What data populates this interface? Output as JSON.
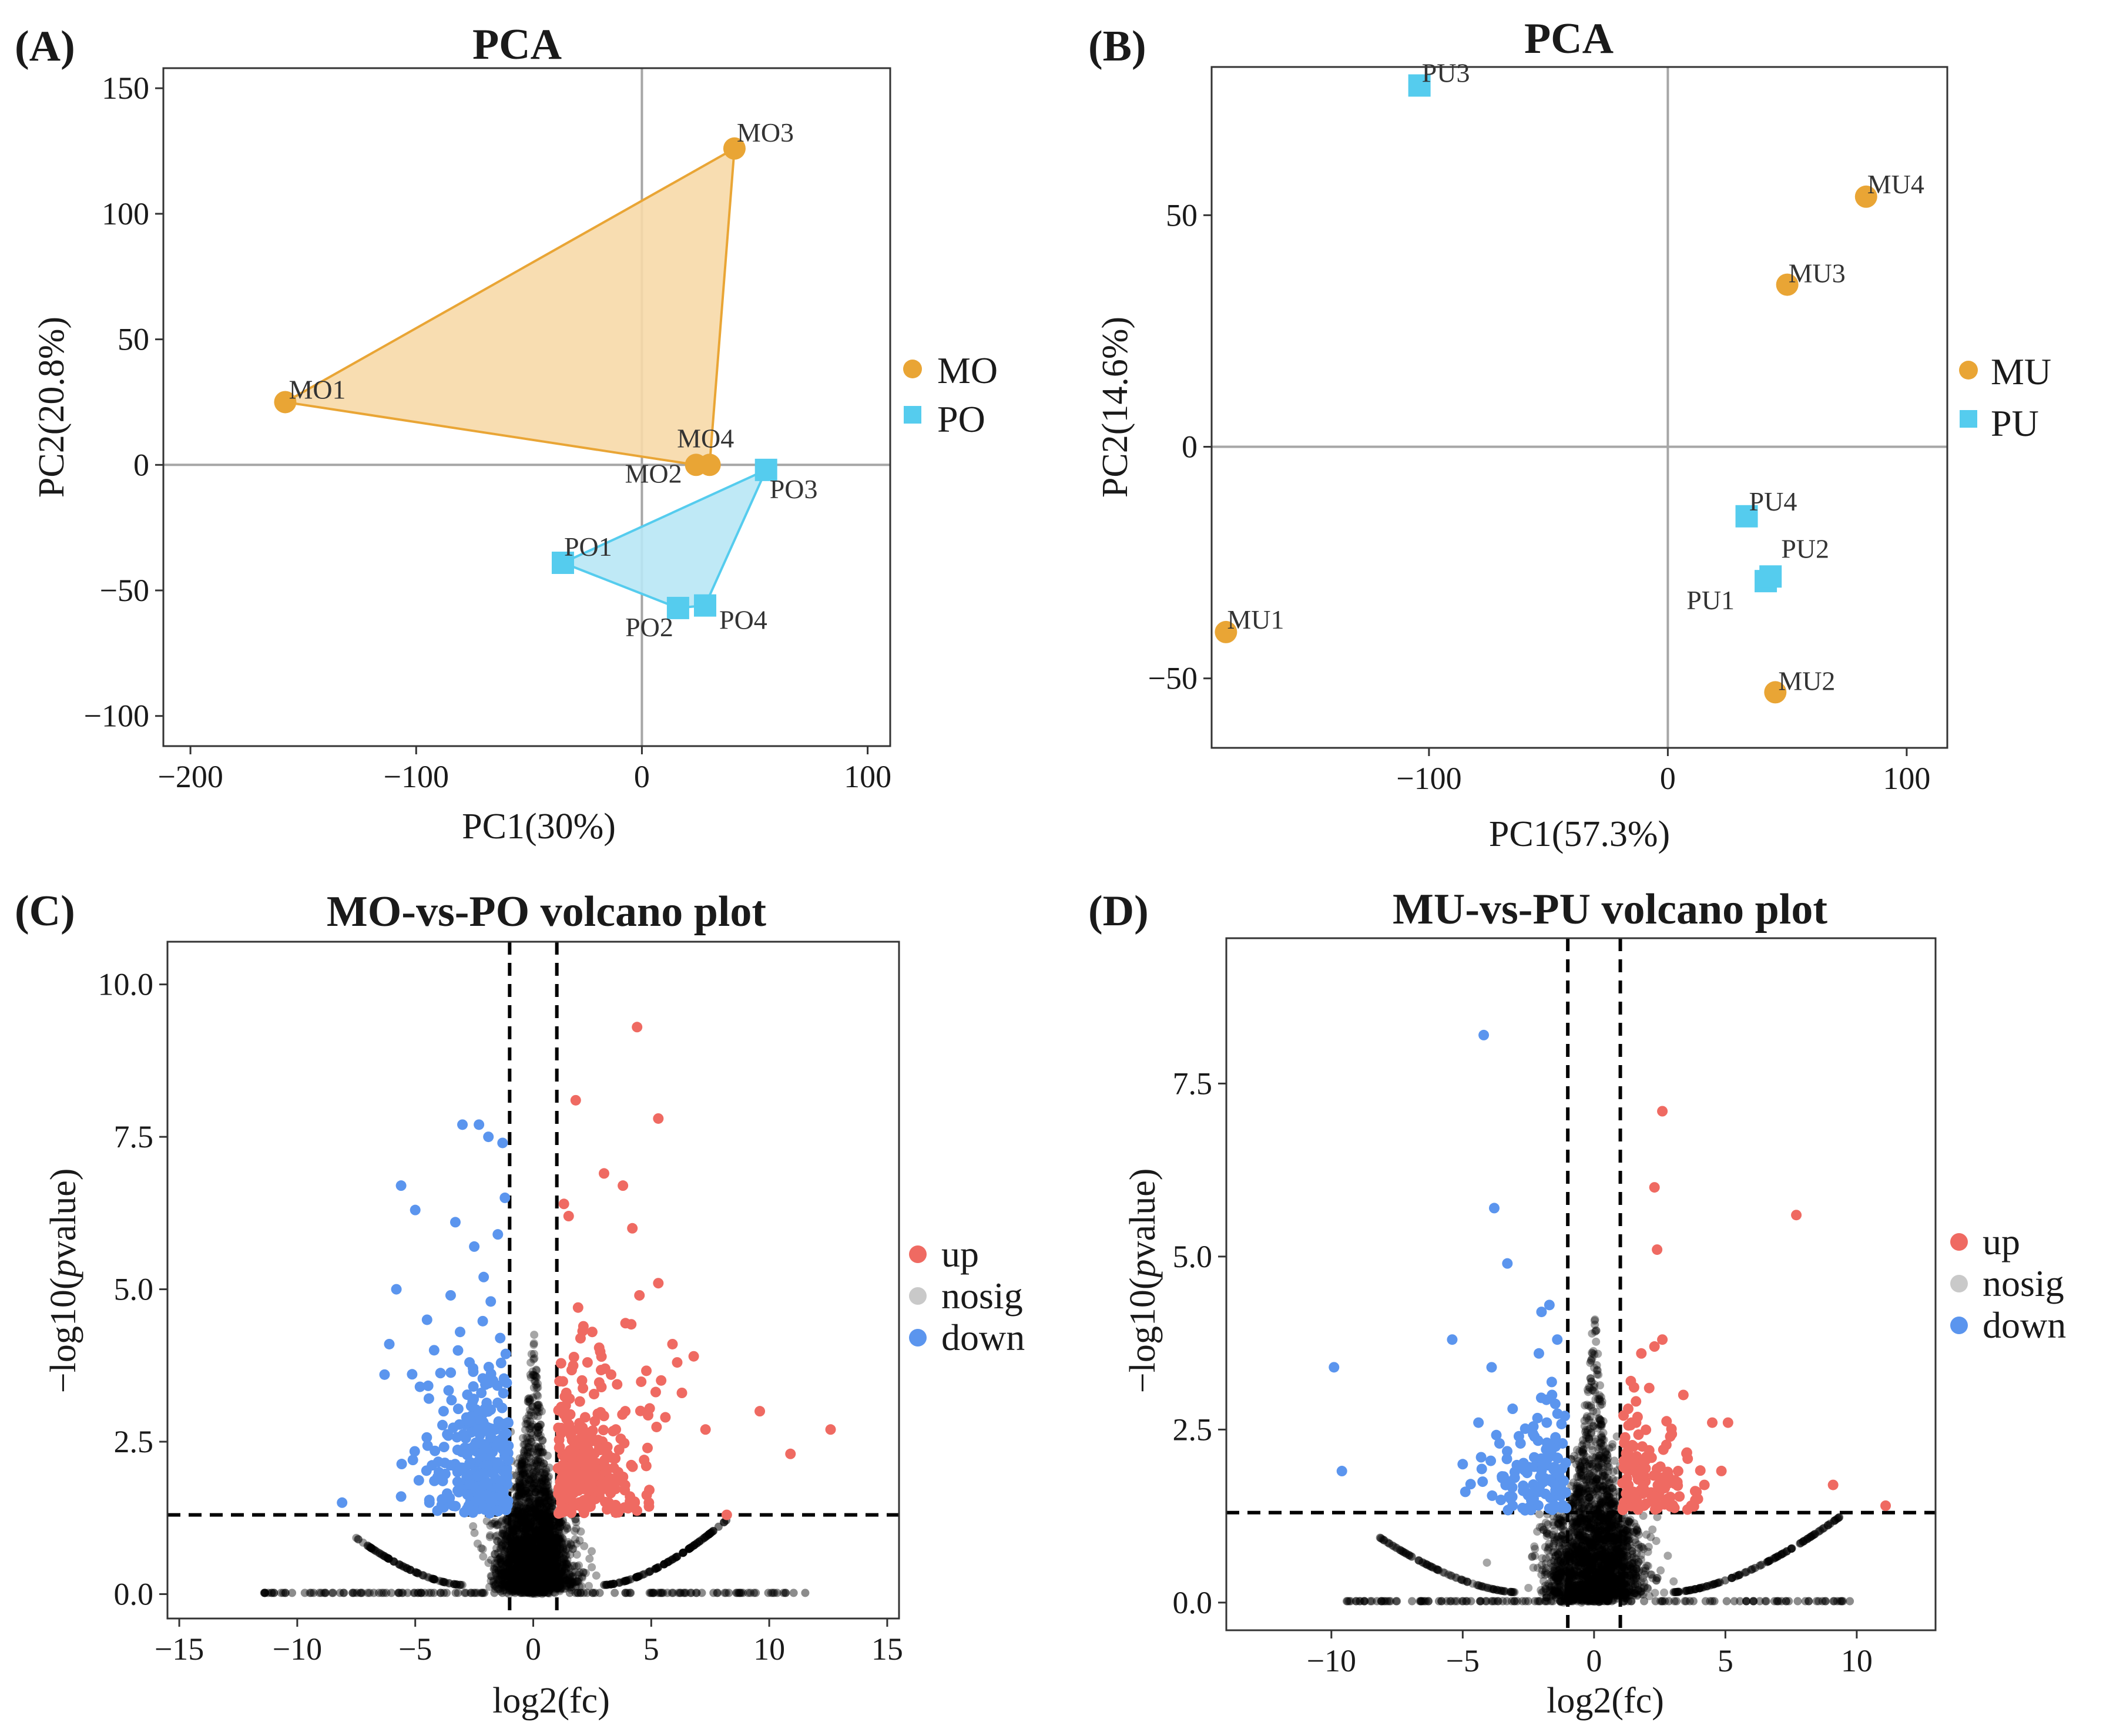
{
  "colors": {
    "orange": "#e9a535",
    "blue": "#55ccee",
    "orange_fill": "#f7d9a9",
    "blue_fill": "#b8e7f5",
    "up": "#ef6a62",
    "down": "#5b95ee",
    "nosig": "#000000",
    "nosig_legend": "#c9c9c9"
  },
  "panels": [
    {
      "letter": "(A)",
      "title": "PCA",
      "xlabel": "PC1(30%)",
      "ylabel": "PC2(20.8%)",
      "xticks": [
        "−200",
        "−100",
        "0",
        "100"
      ],
      "yticks": [
        "−100",
        "−50",
        "0",
        "50",
        "100",
        "150"
      ],
      "legend": [
        "MO",
        "PO"
      ]
    },
    {
      "letter": "(B)",
      "title": "PCA",
      "xlabel": "PC1(57.3%)",
      "ylabel": "PC2(14.6%)",
      "xticks": [
        "−100",
        "0",
        "100"
      ],
      "yticks": [
        "−50",
        "0",
        "50"
      ],
      "legend": [
        "MU",
        "PU"
      ]
    },
    {
      "letter": "(C)",
      "title": "MO-vs-PO volcano plot",
      "xlabel": "log2(fc)",
      "ylabel": "−log10(",
      "ylabel_italic": "p",
      "ylabel_end": "value)",
      "xticks": [
        "−15",
        "−10",
        "−5",
        "0",
        "5",
        "10",
        "15"
      ],
      "yticks": [
        "0.0",
        "2.5",
        "5.0",
        "7.5",
        "10.0"
      ],
      "legend": [
        "up",
        "nosig",
        "down"
      ]
    },
    {
      "letter": "(D)",
      "title": "MU-vs-PU volcano plot",
      "xlabel": "log2(fc)",
      "ylabel": "−log10(",
      "ylabel_italic": "p",
      "ylabel_end": "value)",
      "xticks": [
        "−10",
        "−5",
        "0",
        "5",
        "10"
      ],
      "yticks": [
        "0.0",
        "2.5",
        "5.0",
        "7.5"
      ],
      "legend": [
        "up",
        "nosig",
        "down"
      ]
    }
  ],
  "chart_data": [
    {
      "type": "scatter",
      "title": "PCA",
      "xlabel": "PC1(30%)",
      "ylabel": "PC2(20.8%)",
      "xlim": [
        -212,
        110
      ],
      "ylim": [
        -112,
        158
      ],
      "reference_lines": {
        "x": 0,
        "y": 0
      },
      "legend_position": "right",
      "series": [
        {
          "name": "MO",
          "marker": "circle",
          "color": "#e9a535",
          "hull": [
            "MO1",
            "MO3",
            "MO4",
            "MO2"
          ],
          "points": [
            {
              "label": "MO1",
              "x": -158,
              "y": 25
            },
            {
              "label": "MO2",
              "x": 24,
              "y": 0
            },
            {
              "label": "MO3",
              "x": 41,
              "y": 126
            },
            {
              "label": "MO4",
              "x": 30,
              "y": 0
            }
          ]
        },
        {
          "name": "PO",
          "marker": "square",
          "color": "#55ccee",
          "hull": [
            "PO1",
            "PO3",
            "PO4",
            "PO2"
          ],
          "points": [
            {
              "label": "PO1",
              "x": -35,
              "y": -39
            },
            {
              "label": "PO2",
              "x": 16,
              "y": -57
            },
            {
              "label": "PO3",
              "x": 55,
              "y": -2
            },
            {
              "label": "PO4",
              "x": 28,
              "y": -56
            }
          ]
        }
      ]
    },
    {
      "type": "scatter",
      "title": "PCA",
      "xlabel": "PC1(57.3%)",
      "ylabel": "PC2(14.6%)",
      "xlim": [
        -191,
        117
      ],
      "ylim": [
        -65,
        82
      ],
      "reference_lines": {
        "x": 0,
        "y": 0
      },
      "legend_position": "right",
      "series": [
        {
          "name": "MU",
          "marker": "circle",
          "color": "#e9a535",
          "points": [
            {
              "label": "MU1",
              "x": -185,
              "y": -40
            },
            {
              "label": "MU2",
              "x": 45,
              "y": -53
            },
            {
              "label": "MU3",
              "x": 50,
              "y": 35
            },
            {
              "label": "MU4",
              "x": 83,
              "y": 54
            }
          ]
        },
        {
          "name": "PU",
          "marker": "square",
          "color": "#55ccee",
          "points": [
            {
              "label": "PU1",
              "x": 41,
              "y": -29
            },
            {
              "label": "PU2",
              "x": 43,
              "y": -28
            },
            {
              "label": "PU3",
              "x": -104,
              "y": 78
            },
            {
              "label": "PU4",
              "x": 33,
              "y": -15
            }
          ]
        }
      ]
    },
    {
      "type": "scatter",
      "title": "MO-vs-PO volcano plot",
      "xlabel": "log2(fc)",
      "ylabel": "−log10(pvalue)",
      "xlim": [
        -15.5,
        15.5
      ],
      "ylim": [
        -0.4,
        10.7
      ],
      "thresholds": {
        "log2fc": [
          -1,
          1
        ],
        "neg_log10_p": 1.3
      },
      "legend_position": "right",
      "legend": [
        "up",
        "nosig",
        "down"
      ],
      "categories": {
        "up": {
          "color": "#ef6a62",
          "points": [
            [
              4.4,
              9.3
            ],
            [
              1.8,
              8.1
            ],
            [
              5.3,
              7.8
            ],
            [
              1.3,
              6.4
            ],
            [
              1.5,
              6.2
            ],
            [
              3.0,
              6.9
            ],
            [
              3.8,
              6.7
            ],
            [
              4.2,
              6.0
            ],
            [
              5.3,
              5.1
            ],
            [
              4.5,
              4.9
            ],
            [
              1.9,
              4.7
            ],
            [
              5.9,
              4.1
            ],
            [
              6.1,
              3.8
            ],
            [
              6.3,
              3.3
            ],
            [
              6.8,
              3.9
            ],
            [
              7.3,
              2.7
            ],
            [
              9.6,
              3.0
            ],
            [
              10.9,
              2.3
            ],
            [
              12.6,
              2.7
            ],
            [
              8.2,
              1.3
            ],
            [
              2.5,
              4.3
            ],
            [
              3.3,
              3.6
            ],
            [
              2.2,
              2.9
            ],
            [
              2.8,
              2.4
            ],
            [
              3.6,
              2.0
            ],
            [
              1.4,
              3.3
            ],
            [
              1.6,
              2.6
            ],
            [
              2.0,
              2.1
            ],
            [
              4.1,
              1.6
            ],
            [
              3.2,
              1.5
            ],
            [
              1.2,
              1.9
            ],
            [
              2.6,
              1.7
            ],
            [
              4.7,
              2.2
            ],
            [
              5.6,
              2.9
            ],
            [
              3.9,
              3.0
            ],
            [
              1.7,
              1.5
            ],
            [
              2.3,
              3.8
            ],
            [
              3.5,
              2.7
            ],
            [
              4.9,
              1.5
            ],
            [
              1.1,
              2.4
            ]
          ]
        },
        "down": {
          "color": "#5b95ee",
          "points": [
            [
              -2.3,
              7.7
            ],
            [
              -1.9,
              7.5
            ],
            [
              -3.0,
              7.7
            ],
            [
              -1.3,
              7.4
            ],
            [
              -5.6,
              6.7
            ],
            [
              -5.0,
              6.3
            ],
            [
              -3.3,
              6.1
            ],
            [
              -2.5,
              5.7
            ],
            [
              -1.5,
              5.9
            ],
            [
              -1.2,
              6.5
            ],
            [
              -5.8,
              5.0
            ],
            [
              -6.1,
              4.1
            ],
            [
              -6.3,
              3.6
            ],
            [
              -4.5,
              4.5
            ],
            [
              -3.5,
              4.9
            ],
            [
              -1.8,
              4.8
            ],
            [
              -4.2,
              4.0
            ],
            [
              -4.8,
              3.4
            ],
            [
              -2.7,
              3.8
            ],
            [
              -1.4,
              4.2
            ],
            [
              -3.8,
              3.0
            ],
            [
              -2.2,
              3.3
            ],
            [
              -1.6,
              2.7
            ],
            [
              -5.1,
              2.2
            ],
            [
              -4.0,
              2.0
            ],
            [
              -2.9,
              2.4
            ],
            [
              -1.3,
              2.1
            ],
            [
              -5.6,
              1.6
            ],
            [
              -4.4,
              1.5
            ],
            [
              -3.2,
              1.7
            ],
            [
              -2.0,
              1.5
            ],
            [
              -1.1,
              1.8
            ],
            [
              -8.1,
              1.5
            ],
            [
              -3.6,
              2.6
            ],
            [
              -2.5,
              2.9
            ],
            [
              -1.7,
              3.5
            ],
            [
              -2.8,
              1.4
            ],
            [
              -1.5,
              1.4
            ],
            [
              -3.1,
              4.3
            ],
            [
              -2.1,
              5.2
            ]
          ]
        }
      },
      "nosig_note": "dense black cloud of non-significant points near the origin, below the pvalue threshold or within |log2(fc)|<1"
    },
    {
      "type": "scatter",
      "title": "MU-vs-PU volcano plot",
      "xlabel": "log2(fc)",
      "ylabel": "−log10(pvalue)",
      "xlim": [
        -14,
        13
      ],
      "ylim": [
        -0.4,
        9.6
      ],
      "thresholds": {
        "log2fc": [
          -1,
          1
        ],
        "neg_log10_p": 1.3
      },
      "legend_position": "right",
      "legend": [
        "up",
        "nosig",
        "down"
      ],
      "categories": {
        "up": {
          "color": "#ef6a62",
          "points": [
            [
              2.6,
              7.1
            ],
            [
              2.3,
              6.0
            ],
            [
              2.4,
              5.1
            ],
            [
              7.7,
              5.6
            ],
            [
              2.6,
              3.8
            ],
            [
              1.8,
              3.6
            ],
            [
              2.1,
              3.1
            ],
            [
              1.4,
              3.2
            ],
            [
              3.4,
              3.0
            ],
            [
              4.5,
              2.6
            ],
            [
              5.1,
              2.6
            ],
            [
              2.9,
              2.4
            ],
            [
              1.6,
              2.6
            ],
            [
              2.1,
              2.2
            ],
            [
              9.1,
              1.7
            ],
            [
              11.1,
              1.4
            ],
            [
              3.9,
              1.6
            ],
            [
              1.2,
              2.0
            ],
            [
              2.5,
              1.8
            ],
            [
              1.5,
              1.6
            ],
            [
              3.2,
              1.9
            ],
            [
              1.9,
              1.4
            ],
            [
              2.8,
              1.5
            ],
            [
              4.2,
              1.7
            ],
            [
              1.3,
              2.8
            ],
            [
              2.3,
              3.7
            ],
            [
              1.7,
              1.8
            ],
            [
              3.7,
              1.4
            ]
          ]
        },
        "down": {
          "color": "#5b95ee",
          "points": [
            [
              -4.2,
              8.2
            ],
            [
              -3.8,
              5.7
            ],
            [
              -3.3,
              4.9
            ],
            [
              -1.7,
              4.3
            ],
            [
              -2.0,
              4.2
            ],
            [
              -5.4,
              3.8
            ],
            [
              -9.9,
              3.4
            ],
            [
              -9.6,
              1.9
            ],
            [
              -3.9,
              3.4
            ],
            [
              -2.1,
              3.6
            ],
            [
              -1.4,
              3.8
            ],
            [
              -3.1,
              2.8
            ],
            [
              -1.8,
              2.6
            ],
            [
              -5.0,
              2.0
            ],
            [
              -4.3,
              2.1
            ],
            [
              -3.5,
              1.8
            ],
            [
              -2.6,
              1.9
            ],
            [
              -1.2,
              2.3
            ],
            [
              -1.5,
              1.4
            ],
            [
              -2.3,
              1.5
            ],
            [
              -4.9,
              1.6
            ],
            [
              -3.1,
              1.4
            ],
            [
              -1.9,
              1.8
            ],
            [
              -4.4,
              2.6
            ],
            [
              -2.8,
              2.3
            ],
            [
              -1.6,
              3.0
            ],
            [
              -3.6,
              2.3
            ],
            [
              -2.1,
              1.6
            ]
          ]
        }
      },
      "nosig_note": "dense black cloud of non-significant points near the origin, below the pvalue threshold or within |log2(fc)|<1"
    }
  ]
}
